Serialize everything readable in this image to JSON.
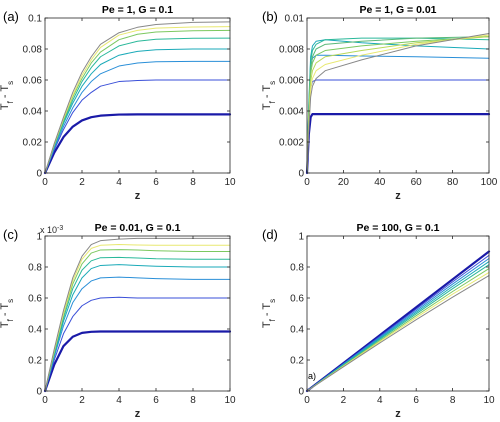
{
  "chart_data": [
    {
      "type": "line",
      "panel_label": "(a)",
      "title": "Pe = 1, G = 0.1",
      "xlabel": "z",
      "ylabel": "T_f - T_s",
      "xlim": [
        0,
        10
      ],
      "ylim": [
        0,
        0.1
      ],
      "xticks": [
        "0",
        "2",
        "4",
        "6",
        "8",
        "10"
      ],
      "yticks": [
        "0",
        "0.02",
        "0.04",
        "0.06",
        "0.08",
        "0.1"
      ],
      "grid": false,
      "series": [
        {
          "color": "#1a1aa8",
          "width": 2.2,
          "x": [
            0,
            0.5,
            1,
            1.5,
            2,
            2.5,
            3,
            4,
            5,
            6,
            8,
            10
          ],
          "y": [
            0,
            0.0131,
            0.0232,
            0.0299,
            0.0339,
            0.036,
            0.037,
            0.0377,
            0.0378,
            0.0378,
            0.0378,
            0.0378
          ]
        },
        {
          "color": "#3a4fd8",
          "width": 1,
          "x": [
            0,
            0.5,
            1,
            1.5,
            2,
            2.5,
            3,
            4,
            5,
            6,
            8,
            10
          ],
          "y": [
            0,
            0.015,
            0.028,
            0.039,
            0.047,
            0.052,
            0.056,
            0.059,
            0.0597,
            0.06,
            0.06,
            0.06
          ]
        },
        {
          "color": "#2a8fd8",
          "width": 1,
          "x": [
            0,
            0.5,
            1,
            1.5,
            2,
            2.5,
            3,
            4,
            5,
            6,
            8,
            10
          ],
          "y": [
            0,
            0.016,
            0.03,
            0.042,
            0.052,
            0.059,
            0.064,
            0.069,
            0.071,
            0.0718,
            0.072,
            0.072
          ]
        },
        {
          "color": "#1aaab8",
          "width": 1,
          "x": [
            0,
            0.5,
            1,
            1.5,
            2,
            2.5,
            3,
            4,
            5,
            6,
            8,
            10
          ],
          "y": [
            0,
            0.017,
            0.032,
            0.045,
            0.056,
            0.064,
            0.07,
            0.076,
            0.0785,
            0.0795,
            0.08,
            0.08
          ]
        },
        {
          "color": "#2ab89a",
          "width": 1,
          "x": [
            0,
            0.5,
            1,
            1.5,
            2,
            2.5,
            3,
            4,
            5,
            6,
            8,
            10
          ],
          "y": [
            0,
            0.0175,
            0.033,
            0.047,
            0.059,
            0.068,
            0.075,
            0.082,
            0.085,
            0.0863,
            0.0869,
            0.087
          ]
        },
        {
          "color": "#7cc860",
          "width": 1,
          "x": [
            0,
            0.5,
            1,
            1.5,
            2,
            2.5,
            3,
            4,
            5,
            6,
            8,
            10
          ],
          "y": [
            0,
            0.018,
            0.034,
            0.049,
            0.061,
            0.071,
            0.078,
            0.086,
            0.0895,
            0.091,
            0.0918,
            0.092
          ]
        },
        {
          "color": "#e8e870",
          "width": 1,
          "x": [
            0,
            0.5,
            1,
            1.5,
            2,
            2.5,
            3,
            4,
            5,
            6,
            8,
            10
          ],
          "y": [
            0,
            0.0185,
            0.035,
            0.05,
            0.063,
            0.073,
            0.081,
            0.089,
            0.092,
            0.0935,
            0.0942,
            0.0944
          ]
        },
        {
          "color": "#888888",
          "width": 1,
          "x": [
            0,
            0.5,
            1,
            1.5,
            2,
            2.5,
            3,
            4,
            5,
            6,
            8,
            10
          ],
          "y": [
            0,
            0.019,
            0.036,
            0.052,
            0.065,
            0.075,
            0.083,
            0.0905,
            0.094,
            0.0958,
            0.0972,
            0.0975
          ]
        }
      ]
    },
    {
      "type": "line",
      "panel_label": "(b)",
      "title": "Pe = 1, G = 0.01",
      "xlabel": "z",
      "ylabel": "T_f - T_s",
      "xlim": [
        0,
        100
      ],
      "ylim": [
        0,
        0.01
      ],
      "xticks": [
        "0",
        "20",
        "40",
        "60",
        "80",
        "100"
      ],
      "yticks": [
        "0",
        "0.002",
        "0.004",
        "0.006",
        "0.008",
        "0.01"
      ],
      "grid": false,
      "series": [
        {
          "color": "#1a1aa8",
          "width": 2.2,
          "x": [
            0,
            1,
            2,
            3,
            5,
            10,
            30,
            60,
            100
          ],
          "y": [
            0,
            0.0025,
            0.0036,
            0.0038,
            0.0038,
            0.0038,
            0.0038,
            0.0038,
            0.0038
          ]
        },
        {
          "color": "#3a4fd8",
          "width": 1,
          "x": [
            0,
            1,
            2,
            3,
            5,
            10,
            30,
            60,
            100
          ],
          "y": [
            0,
            0.0035,
            0.0055,
            0.0059,
            0.006,
            0.006,
            0.006,
            0.006,
            0.006
          ]
        },
        {
          "color": "#2a8fd8",
          "width": 1,
          "x": [
            0,
            1,
            2,
            3,
            5,
            10,
            30,
            60,
            100
          ],
          "y": [
            0,
            0.0042,
            0.0068,
            0.0074,
            0.0076,
            0.0076,
            0.00755,
            0.0075,
            0.0074
          ]
        },
        {
          "color": "#1aaab8",
          "width": 1,
          "x": [
            0,
            1,
            2,
            3,
            5,
            10,
            30,
            60,
            100
          ],
          "y": [
            0,
            0.0046,
            0.0075,
            0.0082,
            0.0085,
            0.0086,
            0.0084,
            0.0082,
            0.008
          ]
        },
        {
          "color": "#2ab89a",
          "width": 1,
          "x": [
            0,
            1,
            2,
            3,
            5,
            10,
            30,
            60,
            100
          ],
          "y": [
            0,
            0.0043,
            0.0072,
            0.0079,
            0.0083,
            0.0086,
            0.0087,
            0.0087,
            0.0086
          ]
        },
        {
          "color": "#5ab878",
          "width": 1,
          "x": [
            0,
            1,
            2,
            3,
            5,
            10,
            30,
            60,
            100
          ],
          "y": [
            0,
            0.004,
            0.0068,
            0.0075,
            0.008,
            0.0083,
            0.0085,
            0.0087,
            0.0088
          ]
        },
        {
          "color": "#7cc860",
          "width": 1,
          "x": [
            0,
            1,
            2,
            3,
            5,
            10,
            30,
            60,
            100
          ],
          "y": [
            0,
            0.0037,
            0.0064,
            0.0071,
            0.0076,
            0.0079,
            0.0082,
            0.0085,
            0.0088
          ]
        },
        {
          "color": "#b8d858",
          "width": 1,
          "x": [
            0,
            1,
            2,
            3,
            5,
            10,
            30,
            60,
            100
          ],
          "y": [
            0,
            0.0034,
            0.0059,
            0.0066,
            0.0071,
            0.0075,
            0.0079,
            0.0084,
            0.0088
          ]
        },
        {
          "color": "#e8e870",
          "width": 1,
          "x": [
            0,
            1,
            2,
            3,
            5,
            10,
            30,
            60,
            100
          ],
          "y": [
            0,
            0.0031,
            0.0054,
            0.0061,
            0.0066,
            0.007,
            0.0076,
            0.0083,
            0.0089
          ]
        },
        {
          "color": "#888888",
          "width": 1,
          "x": [
            0,
            1,
            2,
            3,
            5,
            10,
            30,
            60,
            100
          ],
          "y": [
            0,
            0.0028,
            0.0049,
            0.0056,
            0.0061,
            0.0066,
            0.0073,
            0.0082,
            0.009
          ]
        }
      ]
    },
    {
      "type": "line",
      "panel_label": "(c)",
      "title": "Pe = 0.01, G = 0.1",
      "xlabel": "z",
      "ylabel": "T_f - T_s",
      "y_exponent": "x 10^-3",
      "xlim": [
        0,
        10
      ],
      "ylim": [
        0,
        1
      ],
      "xticks": [
        "0",
        "2",
        "4",
        "6",
        "8",
        "10"
      ],
      "yticks": [
        "0",
        "0.2",
        "0.4",
        "0.6",
        "0.8",
        "1"
      ],
      "grid": false,
      "series": [
        {
          "color": "#1a1aa8",
          "width": 2.2,
          "x": [
            0,
            0.5,
            1,
            1.5,
            2,
            2.5,
            3,
            4,
            5,
            6,
            8,
            10
          ],
          "y": [
            0,
            0.17,
            0.29,
            0.35,
            0.375,
            0.382,
            0.384,
            0.384,
            0.384,
            0.384,
            0.384,
            0.384
          ]
        },
        {
          "color": "#3a4fd8",
          "width": 1,
          "x": [
            0,
            0.5,
            1,
            1.5,
            2,
            2.5,
            3,
            4,
            5,
            6,
            8,
            10
          ],
          "y": [
            0,
            0.2,
            0.37,
            0.48,
            0.55,
            0.585,
            0.6,
            0.605,
            0.6,
            0.6,
            0.6,
            0.6
          ]
        },
        {
          "color": "#2a8fd8",
          "width": 1,
          "x": [
            0,
            0.5,
            1,
            1.5,
            2,
            2.5,
            3,
            4,
            5,
            6,
            8,
            10
          ],
          "y": [
            0,
            0.22,
            0.42,
            0.57,
            0.66,
            0.71,
            0.73,
            0.735,
            0.73,
            0.725,
            0.72,
            0.72
          ]
        },
        {
          "color": "#1aaab8",
          "width": 1,
          "x": [
            0,
            0.5,
            1,
            1.5,
            2,
            2.5,
            3,
            4,
            5,
            6,
            8,
            10
          ],
          "y": [
            0,
            0.23,
            0.45,
            0.62,
            0.73,
            0.79,
            0.81,
            0.815,
            0.81,
            0.805,
            0.8,
            0.8
          ]
        },
        {
          "color": "#2ab89a",
          "width": 1,
          "x": [
            0,
            0.5,
            1,
            1.5,
            2,
            2.5,
            3,
            4,
            5,
            6,
            8,
            10
          ],
          "y": [
            0,
            0.24,
            0.47,
            0.66,
            0.78,
            0.84,
            0.86,
            0.862,
            0.858,
            0.853,
            0.85,
            0.85
          ]
        },
        {
          "color": "#7cc860",
          "width": 1,
          "x": [
            0,
            0.5,
            1,
            1.5,
            2,
            2.5,
            3,
            4,
            5,
            6,
            8,
            10
          ],
          "y": [
            0,
            0.25,
            0.49,
            0.69,
            0.82,
            0.89,
            0.91,
            0.912,
            0.91,
            0.905,
            0.9,
            0.9
          ]
        },
        {
          "color": "#e8e870",
          "width": 1,
          "x": [
            0,
            0.5,
            1,
            1.5,
            2,
            2.5,
            3,
            4,
            5,
            6,
            8,
            10
          ],
          "y": [
            0,
            0.26,
            0.5,
            0.71,
            0.85,
            0.92,
            0.94,
            0.945,
            0.942,
            0.94,
            0.94,
            0.94
          ]
        },
        {
          "color": "#888888",
          "width": 1,
          "x": [
            0,
            0.5,
            1,
            1.5,
            2,
            2.5,
            3,
            4,
            5,
            6,
            8,
            10
          ],
          "y": [
            0,
            0.27,
            0.52,
            0.73,
            0.87,
            0.945,
            0.97,
            0.98,
            0.985,
            0.985,
            0.985,
            0.985
          ]
        }
      ]
    },
    {
      "type": "line",
      "panel_label": "(d)",
      "title": "Pe = 100, G = 0.1",
      "xlabel": "z",
      "ylabel": "T_f - T_s",
      "annotation": "a)",
      "xlim": [
        0,
        10
      ],
      "ylim": [
        0,
        1
      ],
      "xticks": [
        "0",
        "2",
        "4",
        "6",
        "8",
        "10"
      ],
      "yticks": [
        "0",
        "0.2",
        "0.4",
        "0.6",
        "0.8",
        "1"
      ],
      "grid": false,
      "series": [
        {
          "color": "#1a1aa8",
          "width": 2.2,
          "x": [
            0,
            2,
            4,
            6,
            8,
            10
          ],
          "y": [
            0,
            0.18,
            0.36,
            0.54,
            0.72,
            0.9
          ]
        },
        {
          "color": "#3a4fd8",
          "width": 1,
          "x": [
            0,
            2,
            4,
            6,
            8,
            10
          ],
          "y": [
            0,
            0.176,
            0.352,
            0.528,
            0.704,
            0.875
          ]
        },
        {
          "color": "#2a8fd8",
          "width": 1,
          "x": [
            0,
            2,
            4,
            6,
            8,
            10
          ],
          "y": [
            0,
            0.173,
            0.346,
            0.518,
            0.69,
            0.855
          ]
        },
        {
          "color": "#1aaab8",
          "width": 1,
          "x": [
            0,
            2,
            4,
            6,
            8,
            10
          ],
          "y": [
            0,
            0.17,
            0.34,
            0.508,
            0.675,
            0.835
          ]
        },
        {
          "color": "#2ab89a",
          "width": 1,
          "x": [
            0,
            2,
            4,
            6,
            8,
            10
          ],
          "y": [
            0,
            0.167,
            0.333,
            0.498,
            0.66,
            0.815
          ]
        },
        {
          "color": "#7cc860",
          "width": 1,
          "x": [
            0,
            2,
            4,
            6,
            8,
            10
          ],
          "y": [
            0,
            0.163,
            0.325,
            0.486,
            0.642,
            0.79
          ]
        },
        {
          "color": "#e8e870",
          "width": 1,
          "x": [
            0,
            2,
            4,
            6,
            8,
            10
          ],
          "y": [
            0,
            0.16,
            0.318,
            0.474,
            0.625,
            0.765
          ]
        },
        {
          "color": "#888888",
          "width": 1,
          "x": [
            0,
            2,
            4,
            6,
            8,
            10
          ],
          "y": [
            0,
            0.156,
            0.31,
            0.46,
            0.605,
            0.745
          ]
        }
      ]
    }
  ]
}
